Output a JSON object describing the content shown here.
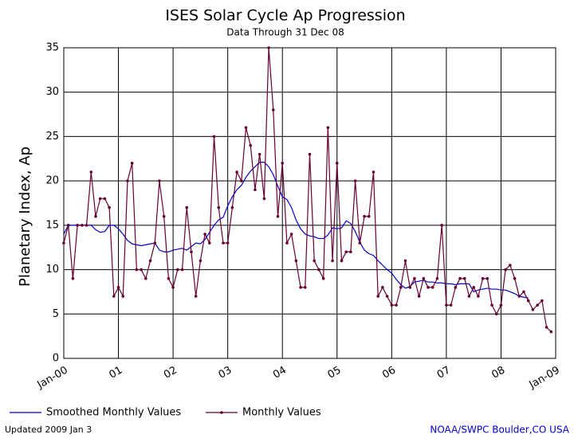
{
  "chart_data": {
    "type": "line",
    "title": "ISES Solar Cycle Ap Progression",
    "subtitle": "Data Through 31 Dec 08",
    "y_label": "Planetary Index, Ap",
    "footer_left": "Updated 2009 Jan  3",
    "footer_right": "NOAA/SWPC Boulder,CO USA",
    "x": [
      0,
      1,
      2,
      3,
      4,
      5,
      6,
      7,
      8,
      9,
      10,
      11,
      12,
      13,
      14,
      15,
      16,
      17,
      18,
      19,
      20,
      21,
      22,
      23,
      24,
      25,
      26,
      27,
      28,
      29,
      30,
      31,
      32,
      33,
      34,
      35,
      36,
      37,
      38,
      39,
      40,
      41,
      42,
      43,
      44,
      45,
      46,
      47,
      48,
      49,
      50,
      51,
      52,
      53,
      54,
      55,
      56,
      57,
      58,
      59,
      60,
      61,
      62,
      63,
      64,
      65,
      66,
      67,
      68,
      69,
      70,
      71,
      72,
      73,
      74,
      75,
      76,
      77,
      78,
      79,
      80,
      81,
      82,
      83,
      84,
      85,
      86,
      87,
      88,
      89,
      90,
      91,
      92,
      93,
      94,
      95,
      96,
      97,
      98,
      99,
      100,
      101,
      102,
      103,
      104,
      105,
      106,
      107
    ],
    "series": [
      {
        "name": "Smoothed Monthly Values",
        "color": "#0000cc",
        "markers": false,
        "values": [
          14,
          15,
          15,
          15,
          15,
          15,
          15,
          14.5,
          14.2,
          14.3,
          15,
          15,
          14.6,
          14,
          13.3,
          12.9,
          12.8,
          12.7,
          12.8,
          12.9,
          13,
          12.2,
          12,
          12,
          12.2,
          12.3,
          12.4,
          12.2,
          12.6,
          13,
          12.9,
          13.4,
          14.2,
          15,
          15.6,
          15.9,
          17.2,
          18.2,
          19,
          19.5,
          20.4,
          21.1,
          21.6,
          22.1,
          22.1,
          21.6,
          20.7,
          19.4,
          18.2,
          17.9,
          17,
          15.6,
          14.6,
          14,
          13.8,
          13.7,
          13.5,
          13.5,
          13.9,
          14.7,
          14.6,
          14.7,
          15.5,
          15.2,
          14.3,
          13.1,
          12.2,
          11.8,
          11.6,
          11,
          10.5,
          10,
          9.6,
          8.9,
          8.3,
          7.9,
          8.1,
          8.6,
          8.7,
          8.8,
          8.6,
          8.6,
          8.5,
          8.5,
          8.4,
          8.4,
          8.3,
          8.4,
          8.4,
          8.4,
          7.5,
          7.7,
          7.8,
          7.9,
          7.8,
          7.8,
          7.7,
          7.7,
          7.5,
          7.3,
          7,
          6.9,
          6.8,
          null,
          null,
          null,
          null,
          null
        ]
      },
      {
        "name": "Monthly Values",
        "color": "#660033",
        "markers": true,
        "values": [
          13,
          15,
          9,
          15,
          15,
          15,
          21,
          16,
          18,
          18,
          17,
          7,
          8,
          7,
          20,
          22,
          10,
          10,
          9,
          11,
          13,
          20,
          16,
          9,
          8,
          10,
          10,
          17,
          12,
          7,
          11,
          14,
          13,
          25,
          17,
          13,
          13,
          17,
          21,
          20,
          26,
          24,
          19,
          23,
          18,
          35,
          28,
          16,
          22,
          13,
          14,
          11,
          8,
          8,
          23,
          11,
          10,
          9,
          26,
          11,
          22,
          11,
          12,
          12,
          20,
          13,
          16,
          16,
          21,
          7,
          8,
          7,
          6,
          6,
          8,
          11,
          8,
          9,
          7,
          9,
          8,
          8,
          9,
          15,
          6,
          6,
          8,
          9,
          9,
          7,
          8,
          7,
          9,
          9,
          6,
          5,
          6,
          10,
          10.5,
          9,
          7,
          7.5,
          6.5,
          5.5,
          6,
          6.5,
          3.5,
          3
        ]
      }
    ],
    "xlim": [
      0,
      108
    ],
    "xticks": [
      {
        "value": 0,
        "label": "Jan-00"
      },
      {
        "value": 12,
        "label": "01"
      },
      {
        "value": 24,
        "label": "02"
      },
      {
        "value": 36,
        "label": "03"
      },
      {
        "value": 48,
        "label": "04"
      },
      {
        "value": 60,
        "label": "05"
      },
      {
        "value": 72,
        "label": "06"
      },
      {
        "value": 84,
        "label": "07"
      },
      {
        "value": 96,
        "label": "08"
      },
      {
        "value": 108,
        "label": "Jan-09"
      }
    ],
    "ylim": [
      0,
      35
    ],
    "yticks": [
      0,
      5,
      10,
      15,
      20,
      25,
      30,
      35
    ],
    "grid": true
  }
}
